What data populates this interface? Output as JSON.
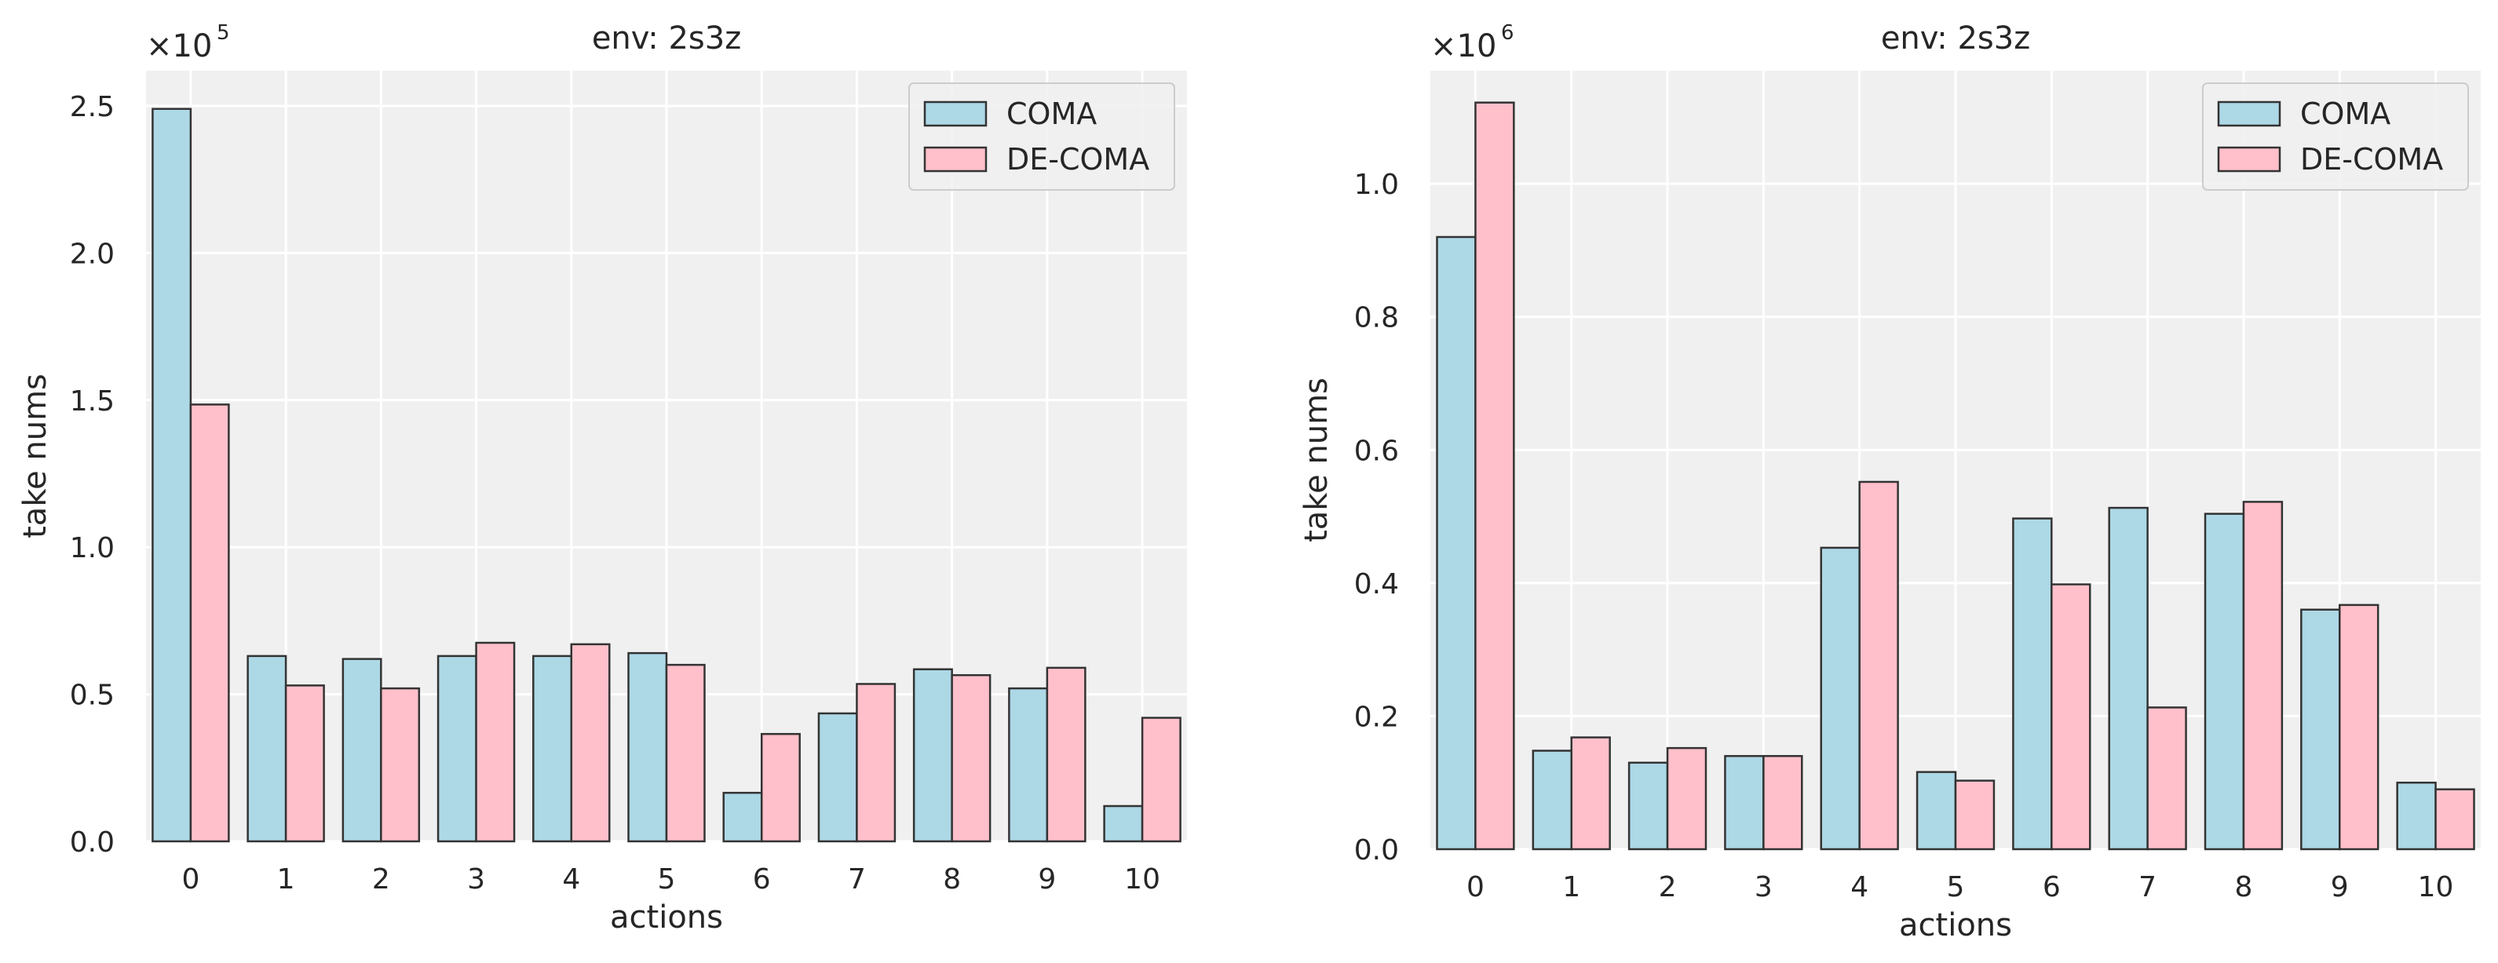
{
  "colors": {
    "coma": "#add8e6",
    "decoma": "#ffc0cb",
    "plot_bg": "#f0f0f0",
    "grid": "#ffffff",
    "edge": "#333333"
  },
  "chart_data": [
    {
      "type": "bar",
      "title": "env: 2s3z",
      "xlabel": "actions",
      "ylabel": "take nums",
      "multiplier_base": "×10",
      "multiplier_exp": "5",
      "scale": 100000,
      "ylim": [
        0,
        2.62
      ],
      "yticks": [
        "0.0",
        "0.5",
        "1.0",
        "1.5",
        "2.0",
        "2.5"
      ],
      "categories": [
        "0",
        "1",
        "2",
        "3",
        "4",
        "5",
        "6",
        "7",
        "8",
        "9",
        "10"
      ],
      "legend_position": "top-right",
      "series": [
        {
          "name": "COMA",
          "color": "#add8e6",
          "values": [
            2.49,
            0.63,
            0.62,
            0.63,
            0.63,
            0.64,
            0.165,
            0.435,
            0.585,
            0.52,
            0.12
          ]
        },
        {
          "name": "DE-COMA",
          "color": "#ffc0cb",
          "values": [
            1.485,
            0.53,
            0.52,
            0.675,
            0.67,
            0.6,
            0.365,
            0.535,
            0.565,
            0.59,
            0.42
          ]
        }
      ]
    },
    {
      "type": "bar",
      "title": "env: 2s3z",
      "xlabel": "actions",
      "ylabel": "take nums",
      "multiplier_base": "×10",
      "multiplier_exp": "6",
      "scale": 1000000,
      "ylim": [
        0,
        1.17
      ],
      "yticks": [
        "0.0",
        "0.2",
        "0.4",
        "0.6",
        "0.8",
        "1.0"
      ],
      "categories": [
        "0",
        "1",
        "2",
        "3",
        "4",
        "5",
        "6",
        "7",
        "8",
        "9",
        "10"
      ],
      "legend_position": "top-right",
      "series": [
        {
          "name": "COMA",
          "color": "#add8e6",
          "values": [
            0.92,
            0.148,
            0.13,
            0.14,
            0.453,
            0.116,
            0.497,
            0.513,
            0.504,
            0.36,
            0.1
          ]
        },
        {
          "name": "DE-COMA",
          "color": "#ffc0cb",
          "values": [
            1.122,
            0.168,
            0.152,
            0.14,
            0.552,
            0.103,
            0.398,
            0.213,
            0.522,
            0.367,
            0.09
          ]
        }
      ]
    }
  ]
}
